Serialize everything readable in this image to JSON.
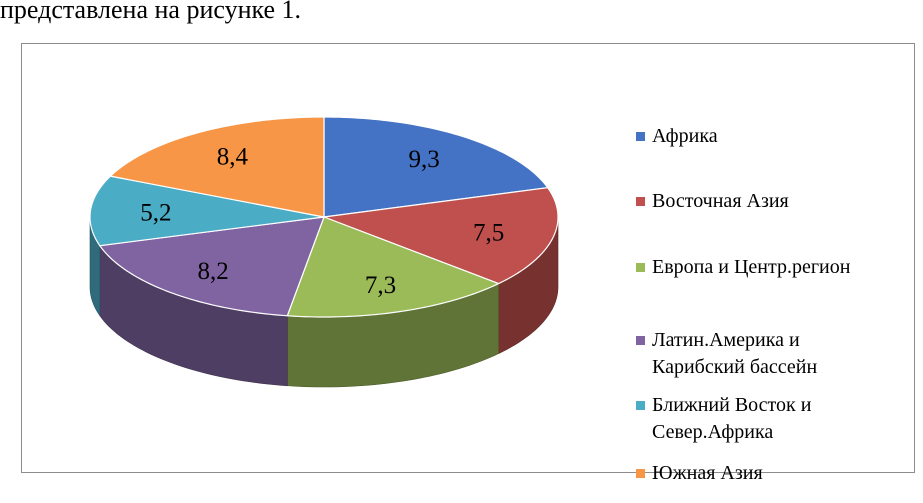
{
  "page_text": "представлена на рисунке 1.",
  "chart_data": {
    "type": "pie",
    "style": "3d-exploded-none",
    "legend_position": "right",
    "categories": [
      "Африка",
      "Восточная Азия",
      "Европа и Центр.регион",
      "Латин.Америка и Карибский бассейн",
      "Ближний Восток и Север.Африка",
      "Южная Азия"
    ],
    "legend_labels": [
      "Африка",
      "Восточная Азия",
      "Европа и Центр.регион",
      "Латин.Америка и\nКарибский бассейн",
      "Ближний Восток и\nСевер.Африка",
      "Южная Азия"
    ],
    "values": [
      9.3,
      7.5,
      7.3,
      8.2,
      5.2,
      8.4
    ],
    "data_labels": [
      "9,3",
      "7,5",
      "7,3",
      "8,2",
      "5,2",
      "8,4"
    ],
    "colors": [
      "#4472C4",
      "#C0504D",
      "#9BBB59",
      "#8064A2",
      "#4BACC6",
      "#F79646"
    ]
  }
}
